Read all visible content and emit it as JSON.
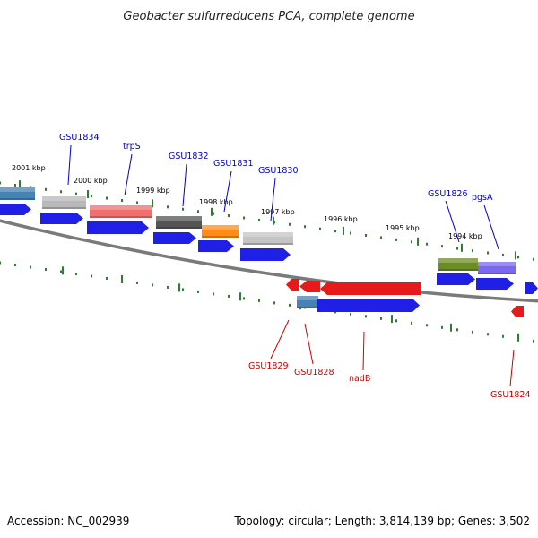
{
  "title": "Geobacter sulfurreducens PCA, complete genome",
  "accession": "Accession: NC_002939",
  "topology": "Topology: circular; Length: 3,814,139 bp; Genes: 3,502",
  "colors": {
    "forward_label": "#0000cc",
    "reverse_label": "#cc0000",
    "cds_forward": "#1f1fe6",
    "cds_reverse": "#e51b1b",
    "backbone": "#7a7a7a",
    "tick": "#2e7d32"
  },
  "kbp_labels": [
    "2001 kbp",
    "2000 kbp",
    "1999 kbp",
    "1998 kbp",
    "1997 kbp",
    "1996 kbp",
    "1995 kbp",
    "1994 kbp"
  ],
  "forward_gene_labels": [
    "GSU1834",
    "trpS",
    "GSU1832",
    "GSU1831",
    "GSU1830",
    "GSU1826",
    "pgsA"
  ],
  "reverse_gene_labels": [
    "GSU1829",
    "GSU1828",
    "nadB",
    "GSU1824"
  ]
}
